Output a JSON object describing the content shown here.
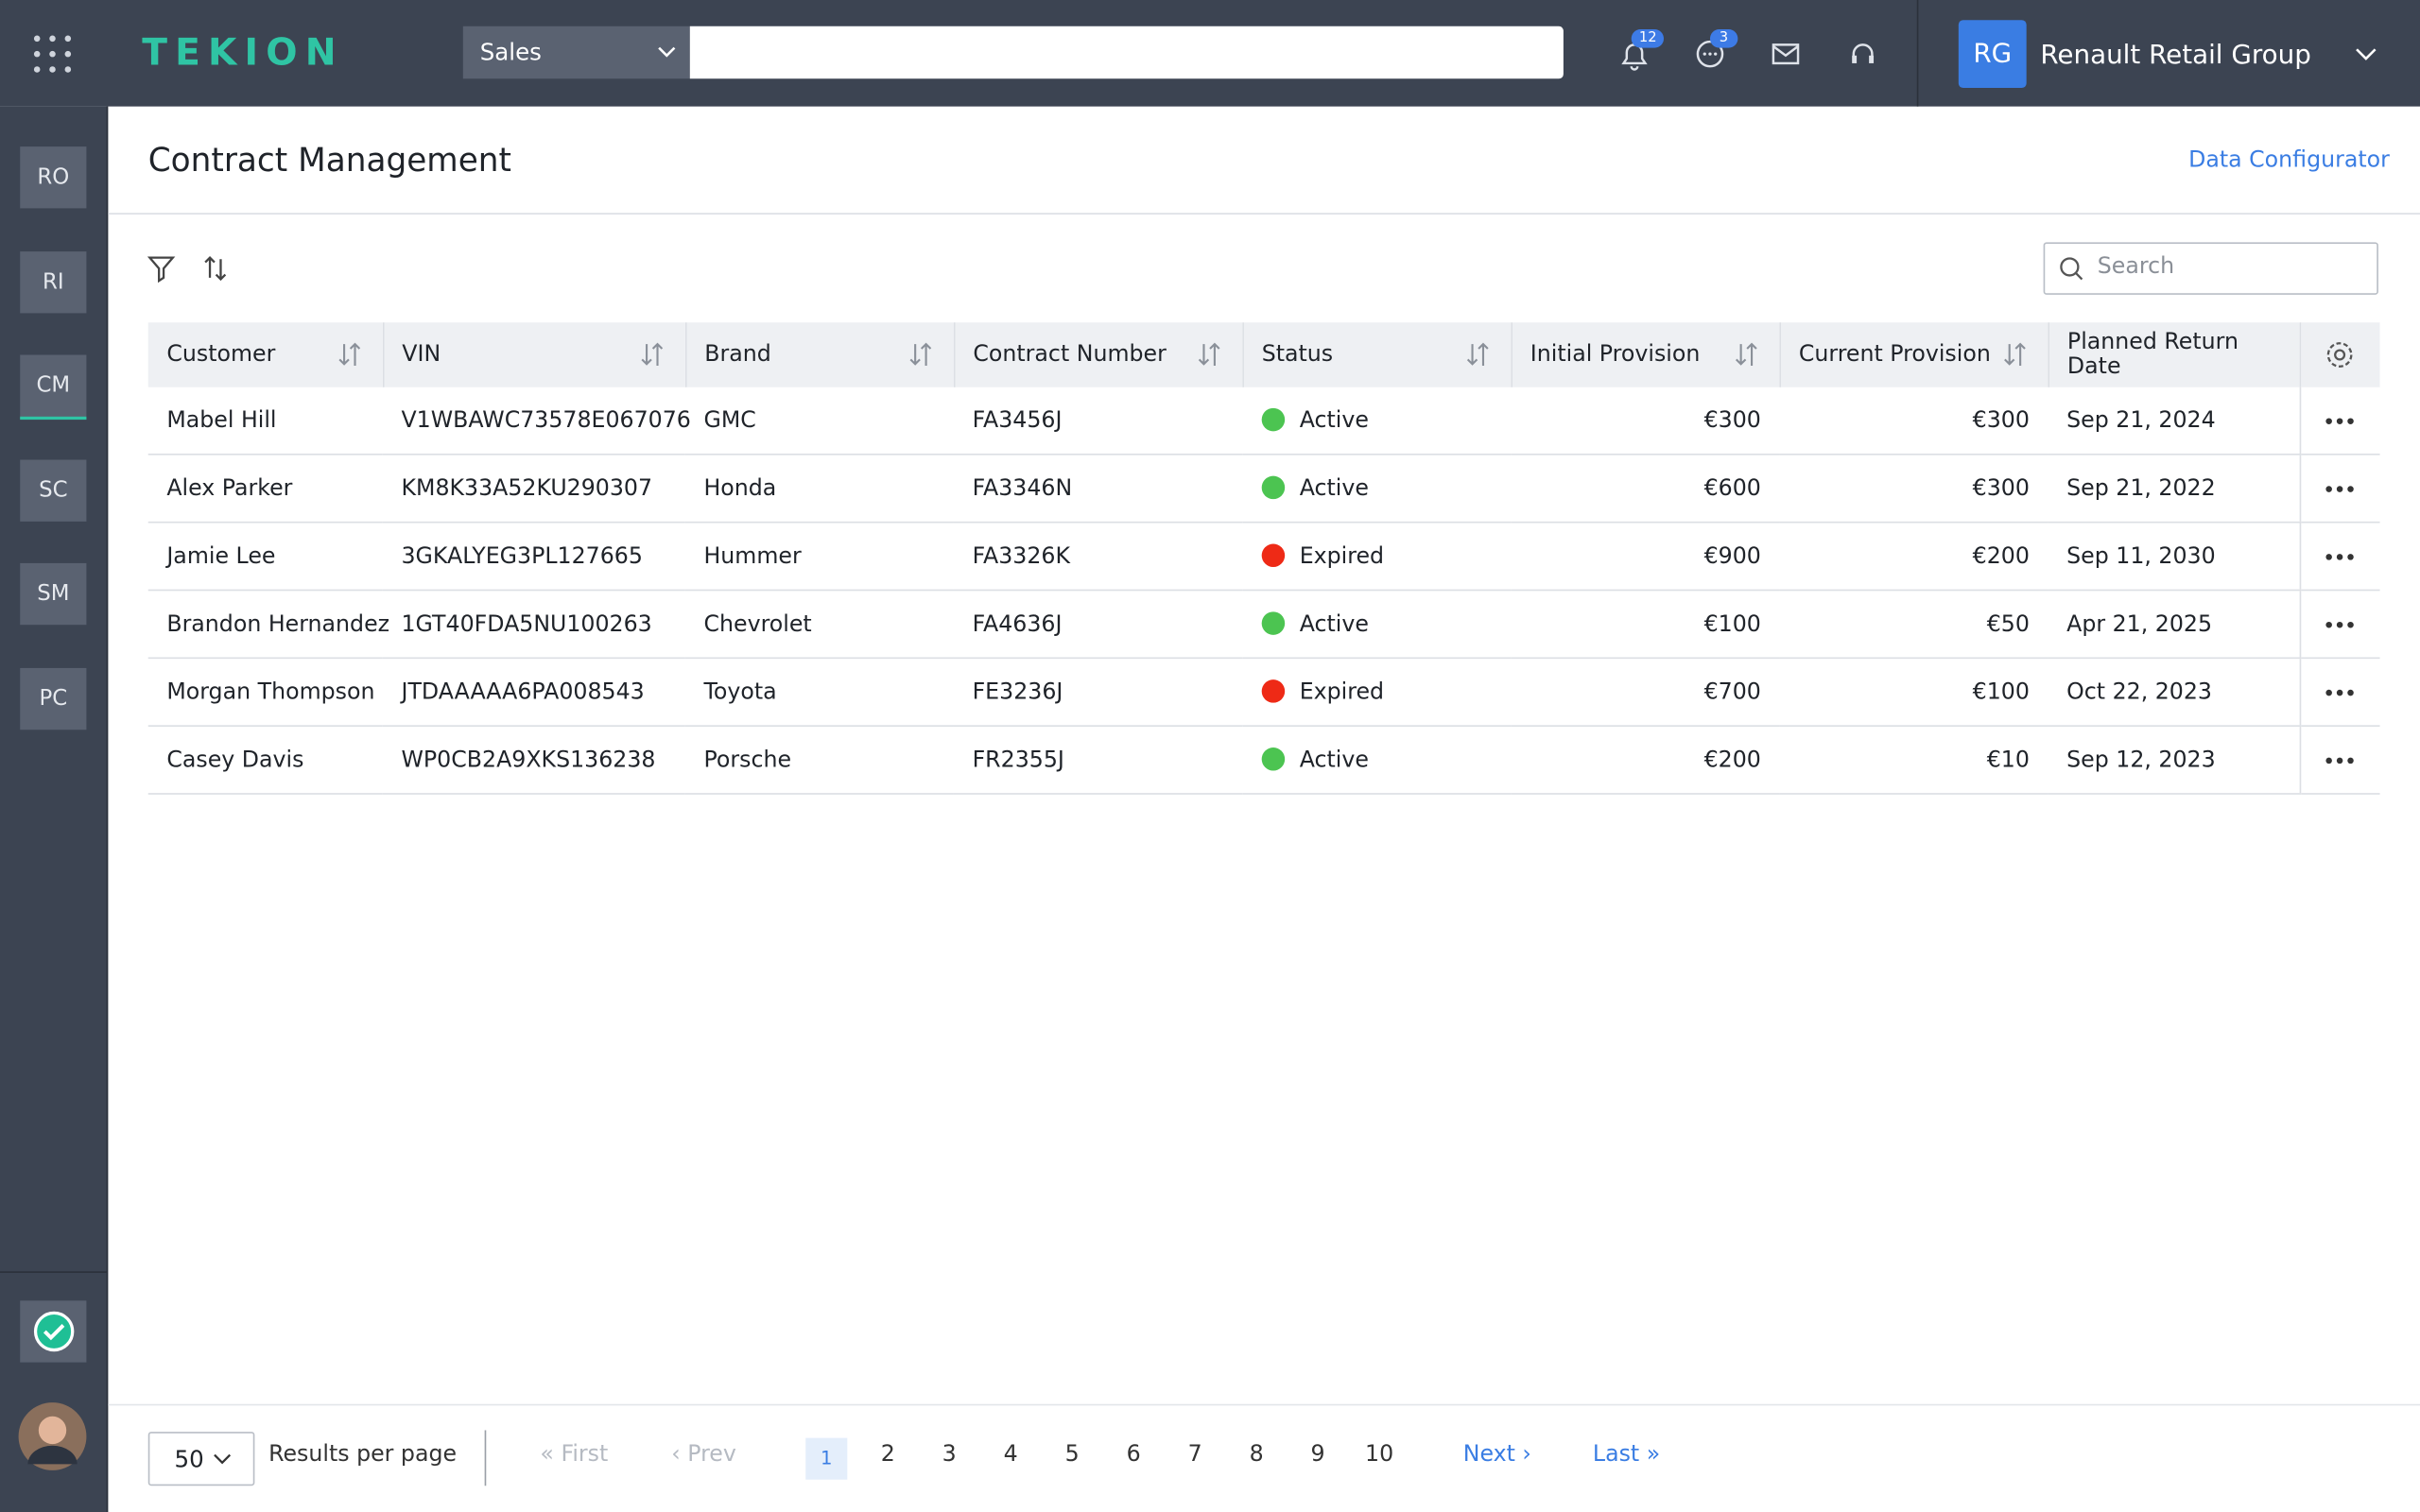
{
  "header": {
    "logo": "TEKION",
    "module": "Sales",
    "notifications": "12",
    "messages": "3",
    "org_initials": "RG",
    "org_name": "Renault Retail Group"
  },
  "sidebar": [
    "RO",
    "RI",
    "CM",
    "SC",
    "SM",
    "PC"
  ],
  "sidebar_active": 2,
  "page": {
    "title": "Contract Management",
    "link": "Data Configurator",
    "search_placeholder": "Search"
  },
  "table": {
    "columns": [
      "Customer",
      "VIN",
      "Brand",
      "Contract Number",
      "Status",
      "Initial Provision",
      "Current Provision",
      "Planned Return Date"
    ],
    "status_colors": {
      "Active": "#4cc451",
      "Expired": "#ee2a16"
    },
    "rows": [
      [
        "Mabel Hill",
        "V1WBAWC73578E067076",
        "GMC",
        "FA3456J",
        "Active",
        "€300",
        "€300",
        "Sep 21, 2024"
      ],
      [
        "Alex Parker",
        "KM8K33A52KU290307",
        "Honda",
        "FA3346N",
        "Active",
        "€600",
        "€300",
        "Sep 21, 2022"
      ],
      [
        "Jamie Lee",
        "3GKALYEG3PL127665",
        "Hummer",
        "FA3326K",
        "Expired",
        "€900",
        "€200",
        "Sep 11, 2030"
      ],
      [
        "Brandon Hernandez",
        "1GT40FDA5NU100263",
        "Chevrolet",
        "FA4636J",
        "Active",
        "€100",
        "€50",
        "Apr 21, 2025"
      ],
      [
        "Morgan Thompson",
        "JTDAAAAA6PA008543",
        "Toyota",
        "FE3236J",
        "Expired",
        "€700",
        "€100",
        "Oct 22, 2023"
      ],
      [
        "Casey Davis",
        "WP0CB2A9XKS136238",
        "Porsche",
        "FR2355J",
        "Active",
        "€200",
        "€10",
        "Sep 12, 2023"
      ]
    ]
  },
  "pagination": {
    "page_size": "50",
    "page_size_label": "Results per page",
    "first": "First",
    "prev": "Prev",
    "pages": [
      "1",
      "2",
      "3",
      "4",
      "5",
      "6",
      "7",
      "8",
      "9",
      "10"
    ],
    "current": 0,
    "next": "Next",
    "last": "Last"
  }
}
